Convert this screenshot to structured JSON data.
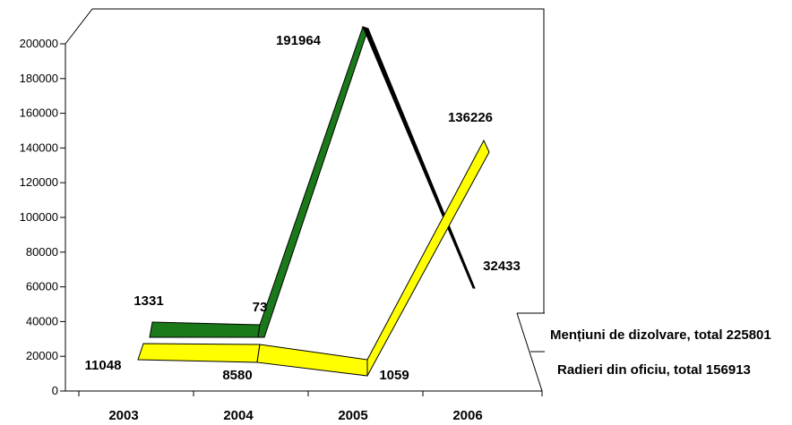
{
  "chart_data": {
    "type": "line",
    "categories": [
      "2003",
      "2004",
      "2005",
      "2006"
    ],
    "ylim": [
      0,
      200000
    ],
    "yticks": [
      0,
      20000,
      40000,
      60000,
      80000,
      100000,
      120000,
      140000,
      160000,
      180000,
      200000
    ],
    "grid": false,
    "series": [
      {
        "name": "Mențiuni de dizolvare, total 225801",
        "values": [
          1331,
          73,
          191964,
          32433
        ],
        "color": "#1a7a1a"
      },
      {
        "name": "Radieri din oficiu, total 156913",
        "values": [
          11048,
          8580,
          1059,
          136226
        ],
        "color": "#ffff00"
      }
    ]
  }
}
